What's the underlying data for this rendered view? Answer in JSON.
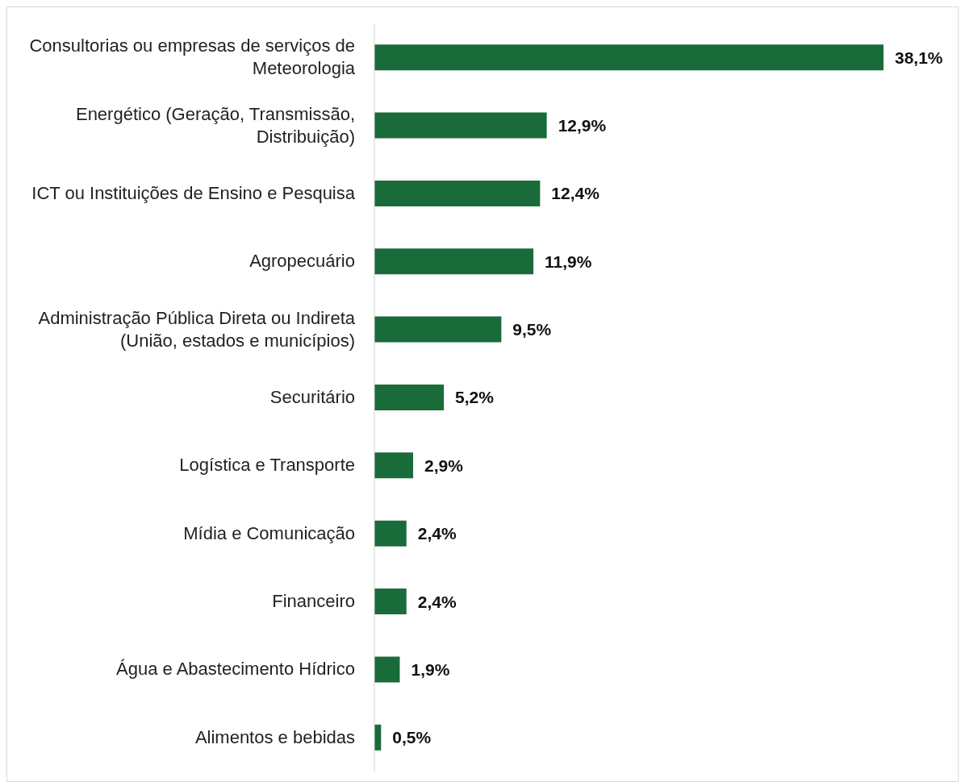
{
  "chart_data": {
    "type": "bar",
    "orientation": "horizontal",
    "categories": [
      "Consultorias ou empresas de serviços de Meteorologia",
      "Energético (Geração, Transmissão, Distribuição)",
      "ICT ou Instituições de Ensino e Pesquisa",
      "Agropecuário",
      "Administração Pública Direta ou Indireta (União, estados e municípios)",
      "Securitário",
      "Logística e Transporte",
      "Mídia e Comunicação",
      "Financeiro",
      "Água e Abastecimento Hídrico",
      "Alimentos e bebidas"
    ],
    "values": [
      38.1,
      12.9,
      12.4,
      11.9,
      9.5,
      5.2,
      2.9,
      2.4,
      2.4,
      1.9,
      0.5
    ],
    "value_labels": [
      "38,1%",
      "12,9%",
      "12,4%",
      "11,9%",
      "9,5%",
      "5,2%",
      "2,9%",
      "2,4%",
      "2,4%",
      "1,9%",
      "0,5%"
    ],
    "color": "#1a6b3a",
    "tick_labels": "y"
  }
}
